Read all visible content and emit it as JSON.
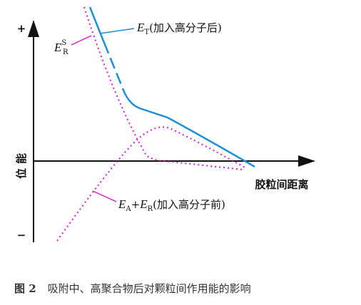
{
  "axes": {
    "plus": "+",
    "minus": "−",
    "y_label": "位能",
    "x_label": "胶粒间距离"
  },
  "labels": {
    "et": {
      "symbol": "E",
      "subscript": "T",
      "note": "(加入高分子后)"
    },
    "ers": {
      "symbol": "E",
      "subscript": "R",
      "superscript": "S"
    },
    "ear": {
      "symbol1": "E",
      "sub1": "A",
      "plus": "+",
      "symbol2": "E",
      "sub2": "R",
      "note": "(加入高分子前)"
    }
  },
  "caption": {
    "figure": "图 2",
    "text": "吸附中、高聚合物后对颗粒间作用能的影响"
  }
}
